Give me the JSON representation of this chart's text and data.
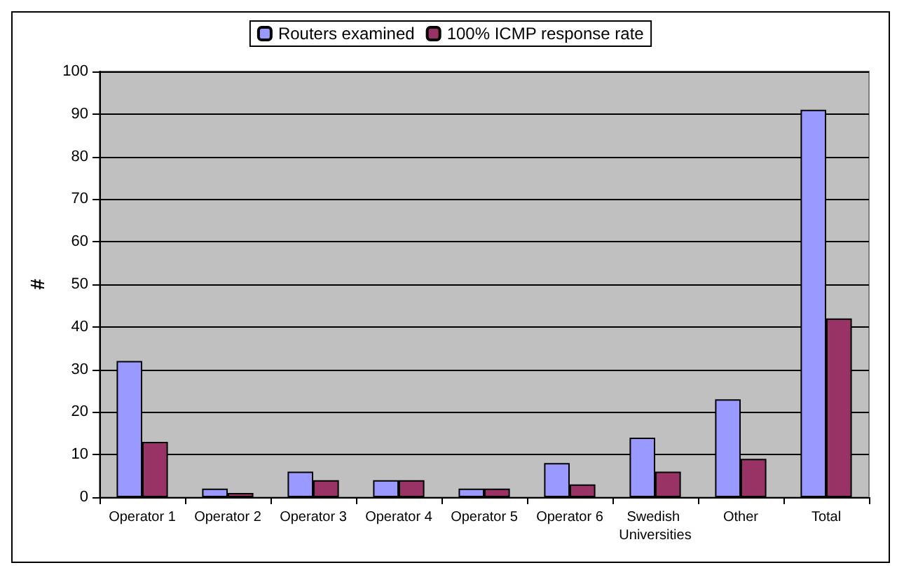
{
  "chart_data": {
    "type": "bar",
    "ylabel": "#",
    "categories": [
      "Operator 1",
      "Operator 2",
      "Operator 3",
      "Operator 4",
      "Operator 5",
      "Operator 6",
      "Swedish Universities",
      "Other",
      "Total"
    ],
    "series": [
      {
        "name": "Routers examined",
        "color": "#9999ff",
        "values": [
          32,
          2,
          6,
          4,
          2,
          8,
          14,
          23,
          91
        ]
      },
      {
        "name": "100% ICMP response rate",
        "color": "#993366",
        "values": [
          13,
          1,
          4,
          4,
          2,
          3,
          6,
          9,
          42
        ]
      }
    ],
    "ylim": [
      0,
      100
    ],
    "yticks": [
      0,
      10,
      20,
      30,
      40,
      50,
      60,
      70,
      80,
      90,
      100
    ],
    "grid": "y",
    "legend": "top"
  }
}
